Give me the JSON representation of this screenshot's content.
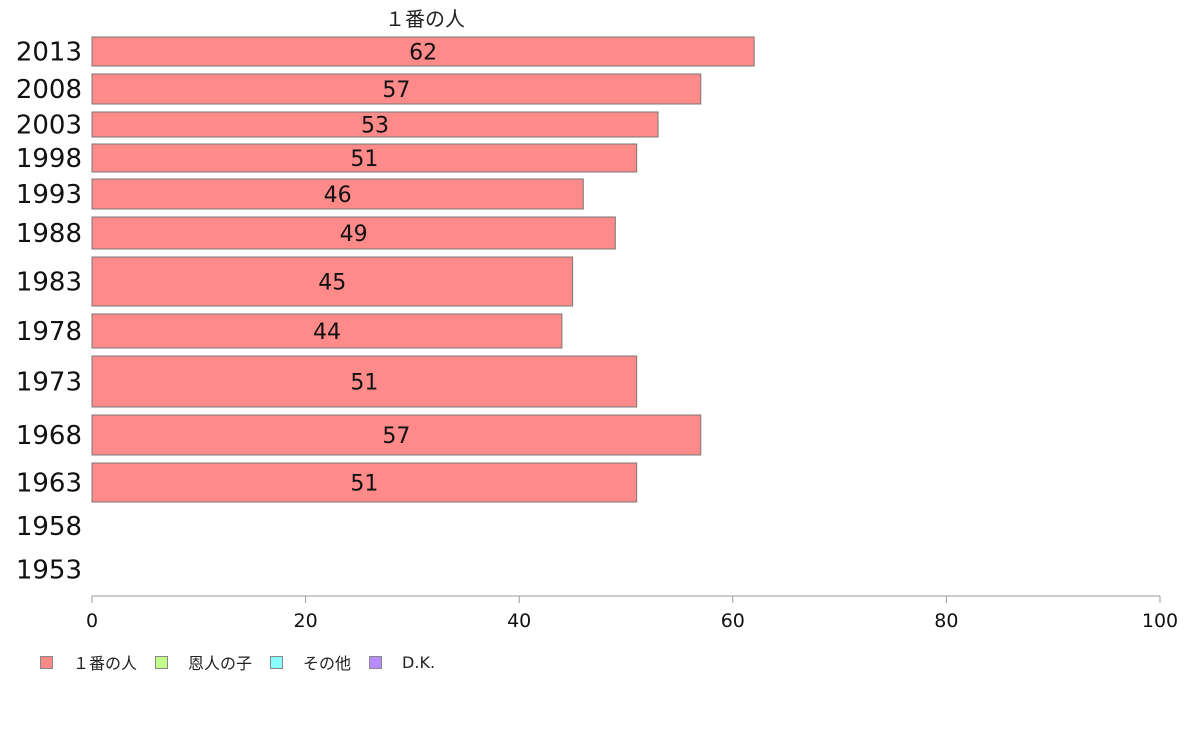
{
  "chart_data": {
    "type": "bar",
    "orientation": "horizontal",
    "series_label": "１番の人",
    "categories": [
      "2013",
      "2008",
      "2003",
      "1998",
      "1993",
      "1988",
      "1983",
      "1978",
      "1973",
      "1968",
      "1963",
      "1958",
      "1953"
    ],
    "values": [
      62,
      57,
      53,
      51,
      46,
      49,
      45,
      44,
      51,
      57,
      51,
      null,
      null
    ],
    "data_labels": [
      "62",
      "57",
      "53",
      "51",
      "46",
      "49",
      "45",
      "44",
      "51",
      "57",
      "51",
      "",
      ""
    ],
    "xlim": [
      0,
      100
    ],
    "x_ticks": [
      "0",
      "20",
      "40",
      "60",
      "80",
      "100"
    ],
    "legend": [
      {
        "label": "１番の人",
        "color": "#ff8a8a"
      },
      {
        "label": "恩人の子",
        "color": "#c3ff8a"
      },
      {
        "label": "その他",
        "color": "#8affff"
      },
      {
        "label": "D.K.",
        "color": "#b98aff"
      }
    ],
    "legend_position": "bottom-left",
    "bar_color": "#ff8a8a"
  }
}
